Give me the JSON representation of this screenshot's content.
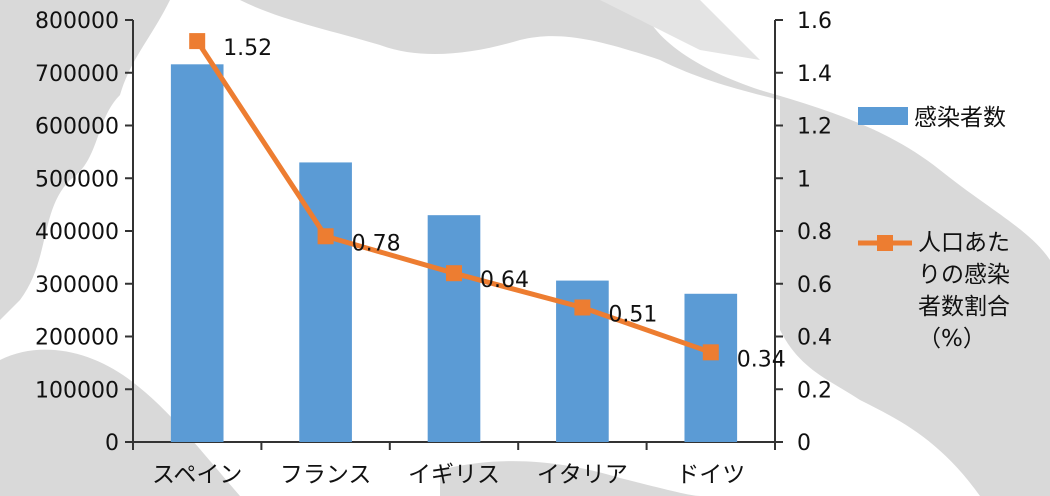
{
  "chart_data": {
    "type": "bar+line",
    "categories": [
      "スペイン",
      "フランス",
      "イギリス",
      "イタリア",
      "ドイツ"
    ],
    "series": [
      {
        "name": "感染者数",
        "type": "bar",
        "axis": "left",
        "values": [
          716000,
          530000,
          430000,
          306000,
          281000
        ]
      },
      {
        "name": "人口あたりの感染者数割合（%）",
        "type": "line",
        "axis": "right",
        "values": [
          1.52,
          0.78,
          0.64,
          0.51,
          0.34
        ]
      }
    ],
    "data_labels": [
      "1.52",
      "0.78",
      "0.64",
      "0.51",
      "0.34"
    ],
    "left_axis": {
      "min": 0,
      "max": 800000,
      "ticks": [
        "0",
        "100000",
        "200000",
        "300000",
        "400000",
        "500000",
        "600000",
        "700000",
        "800000"
      ]
    },
    "right_axis": {
      "min": 0,
      "max": 1.6,
      "ticks": [
        "0",
        "0.2",
        "0.4",
        "0.6",
        "0.8",
        "1",
        "1.2",
        "1.4",
        "1.6"
      ]
    },
    "legend": {
      "placement": "right",
      "bar_label": "感染者数",
      "line_label_lines": [
        "人口あた",
        "りの感染",
        "者数割合",
        "（%）"
      ]
    },
    "grid": false,
    "colors": {
      "bar": "#5b9bd5",
      "line": "#ed7d31",
      "axis": "#333333",
      "map_land": "#d9d9d9"
    }
  }
}
